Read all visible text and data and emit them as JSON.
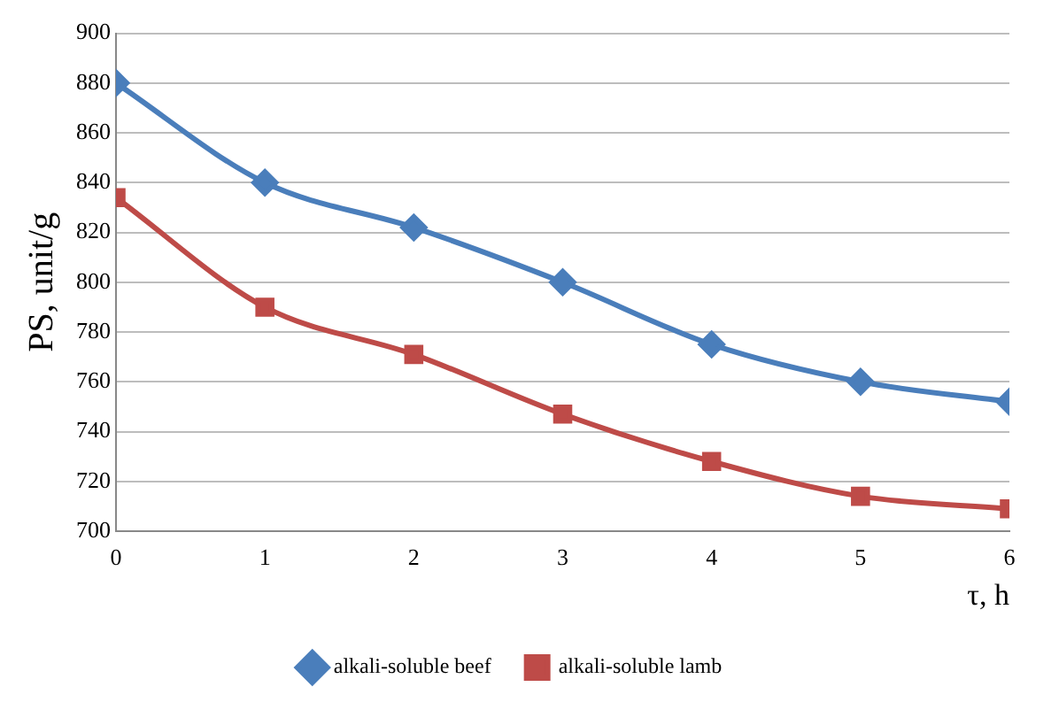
{
  "chart_data": {
    "type": "line",
    "xlabel": "τ, h",
    "ylabel": "PS, unit/g",
    "x": [
      0,
      1,
      2,
      3,
      4,
      5,
      6
    ],
    "series": [
      {
        "name": "alkali-soluble beef",
        "color": "#4a7ebb",
        "marker": "diamond",
        "values": [
          880,
          840,
          822,
          800,
          775,
          760,
          752
        ]
      },
      {
        "name": "alkali-soluble lamb",
        "color": "#be4b48",
        "marker": "square",
        "values": [
          834,
          790,
          771,
          747,
          728,
          714,
          709
        ]
      }
    ],
    "xlim": [
      0,
      6
    ],
    "xticks": [
      0,
      1,
      2,
      3,
      4,
      5,
      6
    ],
    "ylim": [
      700,
      900
    ],
    "yticks": [
      700,
      720,
      740,
      760,
      780,
      800,
      820,
      840,
      860,
      880,
      900
    ],
    "grid": "y",
    "legend": "bottom",
    "line_style": "solid"
  }
}
